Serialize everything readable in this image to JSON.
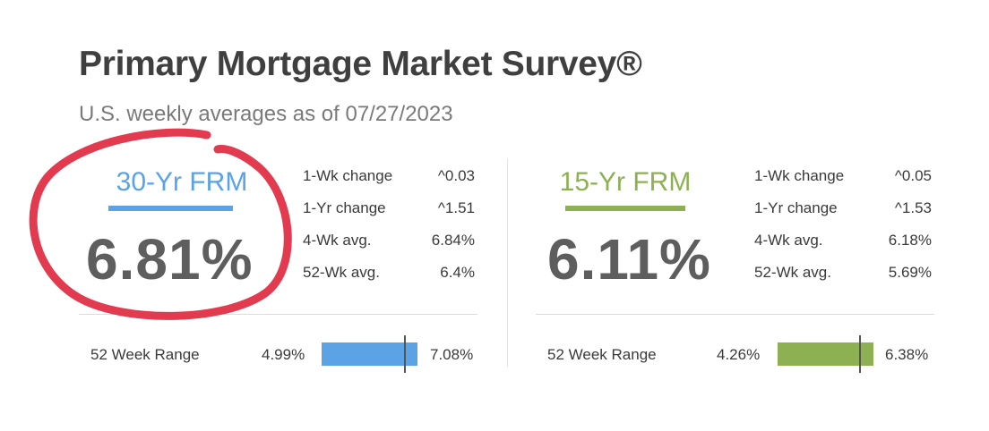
{
  "header": {
    "title": "Primary Mortgage Market Survey®",
    "subtitle": "U.S. weekly averages as of 07/27/2023"
  },
  "products": [
    {
      "name": "30-Yr FRM",
      "accent_color": "#5ba3e4",
      "rate": "6.81%",
      "stats": [
        {
          "label": "1-Wk change",
          "value": "^0.03"
        },
        {
          "label": "1-Yr change",
          "value": "^1.51"
        },
        {
          "label": "4-Wk avg.",
          "value": "6.84%"
        },
        {
          "label": "52-Wk avg.",
          "value": "6.4%"
        }
      ],
      "range": {
        "label": "52 Week Range",
        "low": "4.99%",
        "high": "7.08%",
        "current_fraction": 0.87
      }
    },
    {
      "name": "15-Yr FRM",
      "accent_color": "#8db152",
      "rate": "6.11%",
      "stats": [
        {
          "label": "1-Wk change",
          "value": "^0.05"
        },
        {
          "label": "1-Yr change",
          "value": "^1.53"
        },
        {
          "label": "4-Wk avg.",
          "value": "6.18%"
        },
        {
          "label": "52-Wk avg.",
          "value": "5.69%"
        }
      ],
      "range": {
        "label": "52 Week Range",
        "low": "4.26%",
        "high": "6.38%",
        "current_fraction": 0.86
      }
    }
  ],
  "annotation": {
    "color": "#e23a4e",
    "shape": "hand-drawn-circle"
  }
}
